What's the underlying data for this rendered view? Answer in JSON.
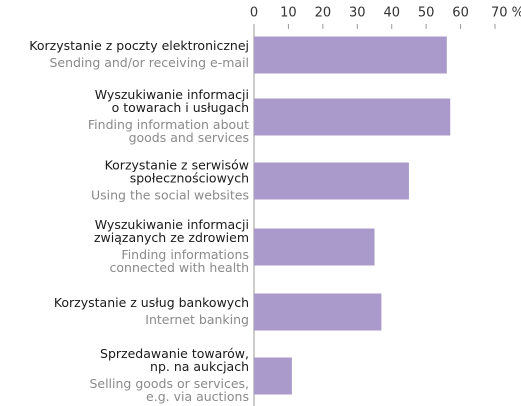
{
  "chart_data": {
    "type": "barh",
    "categories": [
      {
        "pl": [
          "Korzystanie z poczty elektronicznej"
        ],
        "en": [
          "Sending and/or receiving e-mail"
        ]
      },
      {
        "pl": [
          "Wyszukiwanie informacji",
          "o towarach i usługach"
        ],
        "en": [
          "Finding information about",
          "goods and services"
        ]
      },
      {
        "pl": [
          "Korzystanie z serwisów",
          "społecznościowych"
        ],
        "en": [
          "Using the social websites"
        ]
      },
      {
        "pl": [
          "Wyszukiwanie informacji",
          "związanych ze zdrowiem"
        ],
        "en": [
          "Finding informations",
          "connected with health"
        ]
      },
      {
        "pl": [
          "Korzystanie z usług bankowych"
        ],
        "en": [
          "Internet banking"
        ]
      },
      {
        "pl": [
          "Sprzedawanie towarów,",
          "np. na aukcjach"
        ],
        "en": [
          "Selling goods or services,",
          "e.g. via auctions"
        ]
      }
    ],
    "values": [
      56,
      57,
      45,
      35,
      37,
      11
    ],
    "color": "#a99acb",
    "xlim": [
      0,
      70
    ],
    "xticks": [
      0,
      10,
      20,
      30,
      40,
      50,
      60,
      {
        "value": 70,
        "label": "70 %"
      }
    ]
  }
}
